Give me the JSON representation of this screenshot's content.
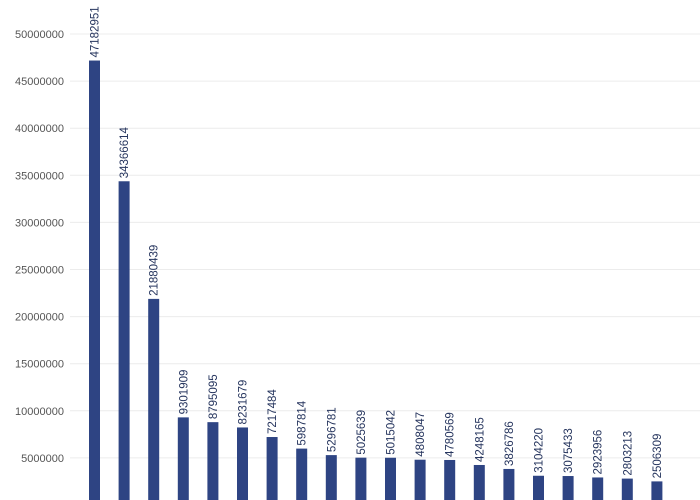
{
  "chart_data": {
    "type": "bar",
    "title": "",
    "xlabel": "",
    "ylabel": "",
    "ylim": [
      0,
      52000000
    ],
    "yticks": [
      5000000,
      10000000,
      15000000,
      20000000,
      25000000,
      30000000,
      35000000,
      40000000,
      45000000,
      50000000
    ],
    "grid": true,
    "bar_color": "#2e4483",
    "values": [
      47182951,
      34366614,
      21880439,
      9301909,
      8795095,
      8231679,
      7217484,
      5987814,
      5296781,
      5025639,
      5015042,
      4808047,
      4780569,
      4248165,
      3826786,
      3104220,
      3075433,
      2923956,
      2803213,
      2506309
    ]
  }
}
